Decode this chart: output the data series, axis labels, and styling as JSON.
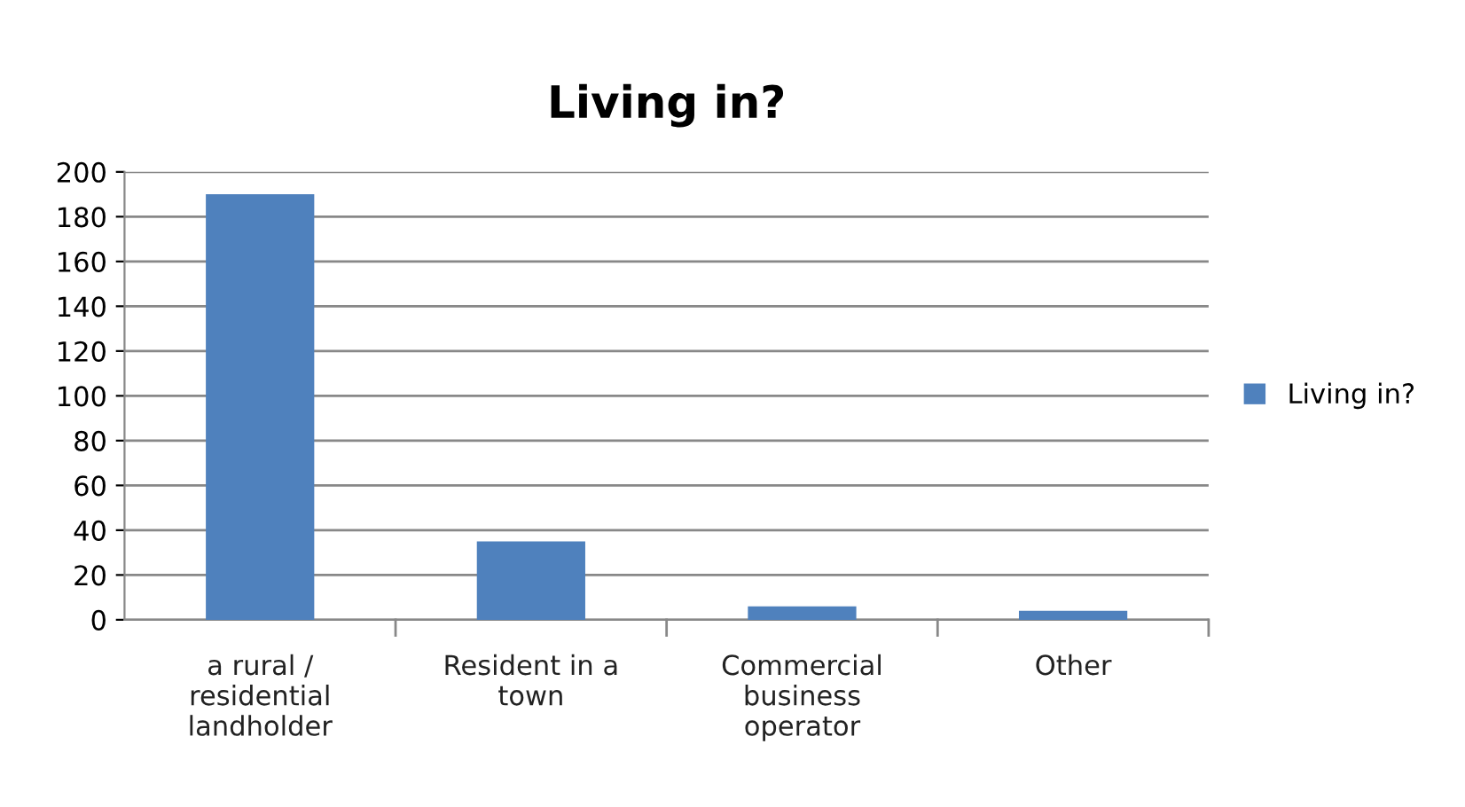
{
  "chart_data": {
    "type": "bar",
    "title": "Living in?",
    "categories": [
      "a rural / residential landholder",
      "Resident in a town",
      "Commercial business operator",
      "Other"
    ],
    "series": [
      {
        "name": "Living in?",
        "color": "#4f81bd",
        "values": [
          190,
          35,
          6,
          4
        ]
      }
    ],
    "ylim": [
      0,
      200
    ],
    "yticks": [
      0,
      20,
      40,
      60,
      80,
      100,
      120,
      140,
      160,
      180,
      200
    ],
    "grid": "y",
    "legend": "right"
  }
}
